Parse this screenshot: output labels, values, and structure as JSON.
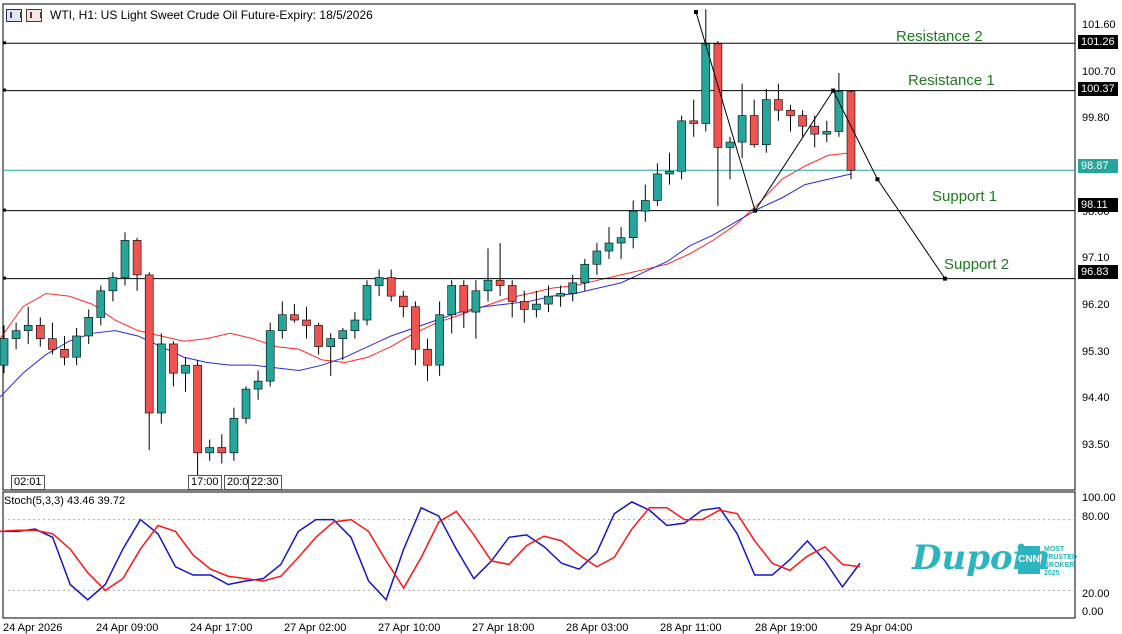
{
  "header": {
    "title": "WTI, H1:  US Light Sweet Crude Oil Future-Expiry: 18/5/2026"
  },
  "colors": {
    "bull": "#26a69a",
    "bear": "#ef5350",
    "ma_fast": "#ff2a2a",
    "ma_slow": "#2a2ad8",
    "stoch_k": "#1414c8",
    "stoch_d": "#ff1414",
    "current_price": "#26a69a",
    "level_label": "#1f7a1f",
    "brand": "#2cb4c0"
  },
  "levels": {
    "resistance_2": {
      "label": "Resistance 2",
      "price": "101.26"
    },
    "resistance_1": {
      "label": "Resistance 1",
      "price": "100.37"
    },
    "current": {
      "price": "98.87"
    },
    "support_1": {
      "label": "Support 1",
      "price": "98.11"
    },
    "support_2": {
      "label": "Support 2",
      "price": "96.83"
    }
  },
  "price_axis": {
    "ticks": [
      "101.60",
      "100.70",
      "99.80",
      "98.00",
      "97.10",
      "96.20",
      "95.30",
      "94.40",
      "93.50"
    ]
  },
  "stoch": {
    "label": "Stoch(5,3,3) 43.46 39.72",
    "ticks": [
      "100.00",
      "80.00",
      "20.00",
      "0.00"
    ]
  },
  "time_axis": {
    "labels": [
      "24 Apr 2026",
      "24 Apr 09:00",
      "24 Apr 17:00",
      "27 Apr 02:00",
      "27 Apr 10:00",
      "27 Apr 18:00",
      "28 Apr 03:00",
      "28 Apr 11:00",
      "28 Apr 19:00",
      "29 Apr 04:00"
    ],
    "tags": [
      "02:01",
      "17:00",
      "20:0",
      "22:30"
    ]
  },
  "brand": {
    "logo": "Dupoin",
    "badge": "CNN",
    "tagline": [
      "MOST",
      "TRUSTED",
      "BROKER",
      "2025"
    ]
  },
  "chart_data": {
    "type": "candlestick",
    "symbol": "WTI",
    "timeframe": "H1",
    "ylim": [
      92.85,
      102.0
    ],
    "candles": [
      [
        95.2,
        95.95,
        95.05,
        95.7
      ],
      [
        95.7,
        96.0,
        95.5,
        95.85
      ],
      [
        95.85,
        96.3,
        95.6,
        95.95
      ],
      [
        95.95,
        96.1,
        95.55,
        95.7
      ],
      [
        95.7,
        96.0,
        95.4,
        95.5
      ],
      [
        95.5,
        95.75,
        95.2,
        95.35
      ],
      [
        95.35,
        95.9,
        95.2,
        95.75
      ],
      [
        95.75,
        96.25,
        95.6,
        96.1
      ],
      [
        96.1,
        96.7,
        95.95,
        96.6
      ],
      [
        96.6,
        96.95,
        96.4,
        96.85
      ],
      [
        96.85,
        97.7,
        96.7,
        97.55
      ],
      [
        97.55,
        97.6,
        96.6,
        96.9
      ],
      [
        96.9,
        96.95,
        93.6,
        94.3
      ],
      [
        94.3,
        95.8,
        94.1,
        95.6
      ],
      [
        95.6,
        95.65,
        94.8,
        95.05
      ],
      [
        95.05,
        95.35,
        94.7,
        95.2
      ],
      [
        95.2,
        95.3,
        93.05,
        93.55
      ],
      [
        93.55,
        93.8,
        93.4,
        93.65
      ],
      [
        93.65,
        93.9,
        93.35,
        93.55
      ],
      [
        93.55,
        94.4,
        93.4,
        94.2
      ],
      [
        94.2,
        94.8,
        94.1,
        94.75
      ],
      [
        94.75,
        95.1,
        94.55,
        94.9
      ],
      [
        94.9,
        96.0,
        94.8,
        95.85
      ],
      [
        95.85,
        96.4,
        95.7,
        96.15
      ],
      [
        96.15,
        96.35,
        96.0,
        96.05
      ],
      [
        96.05,
        96.3,
        95.7,
        95.95
      ],
      [
        95.95,
        96.0,
        95.4,
        95.55
      ],
      [
        95.55,
        95.8,
        95.0,
        95.7
      ],
      [
        95.7,
        95.9,
        95.3,
        95.85
      ],
      [
        95.85,
        96.2,
        95.7,
        96.05
      ],
      [
        96.05,
        96.8,
        95.95,
        96.7
      ],
      [
        96.7,
        97.0,
        96.5,
        96.85
      ],
      [
        96.85,
        97.0,
        96.4,
        96.5
      ],
      [
        96.5,
        96.6,
        96.1,
        96.3
      ],
      [
        96.3,
        96.4,
        95.2,
        95.5
      ],
      [
        95.5,
        95.7,
        94.9,
        95.2
      ],
      [
        95.2,
        96.4,
        95.0,
        96.15
      ],
      [
        96.15,
        96.8,
        95.8,
        96.7
      ],
      [
        96.7,
        96.8,
        95.9,
        96.2
      ],
      [
        96.2,
        96.8,
        95.7,
        96.6
      ],
      [
        96.6,
        97.4,
        96.4,
        96.8
      ],
      [
        96.8,
        97.5,
        96.5,
        96.7
      ],
      [
        96.7,
        96.8,
        96.1,
        96.4
      ],
      [
        96.4,
        96.6,
        96.0,
        96.25
      ],
      [
        96.25,
        96.6,
        96.1,
        96.35
      ],
      [
        96.35,
        96.7,
        96.2,
        96.5
      ],
      [
        96.5,
        96.7,
        96.3,
        96.55
      ],
      [
        96.55,
        96.9,
        96.4,
        96.75
      ],
      [
        96.75,
        97.2,
        96.6,
        97.1
      ],
      [
        97.1,
        97.5,
        96.9,
        97.35
      ],
      [
        97.35,
        97.8,
        97.2,
        97.5
      ],
      [
        97.5,
        97.8,
        97.2,
        97.6
      ],
      [
        97.6,
        98.3,
        97.4,
        98.1
      ],
      [
        98.1,
        98.6,
        97.9,
        98.3
      ],
      [
        98.3,
        99.0,
        98.2,
        98.8
      ],
      [
        98.8,
        99.2,
        98.6,
        98.85
      ],
      [
        98.85,
        99.9,
        98.7,
        99.8
      ],
      [
        99.8,
        100.2,
        99.5,
        99.75
      ],
      [
        99.75,
        101.9,
        99.6,
        101.25
      ],
      [
        101.25,
        101.3,
        98.2,
        99.3
      ],
      [
        99.3,
        99.5,
        98.7,
        99.4
      ],
      [
        99.4,
        100.5,
        99.1,
        99.9
      ],
      [
        99.9,
        100.2,
        99.3,
        99.35
      ],
      [
        99.35,
        100.4,
        99.2,
        100.2
      ],
      [
        100.2,
        100.5,
        99.8,
        100.0
      ],
      [
        100.0,
        100.1,
        99.6,
        99.9
      ],
      [
        99.9,
        100.0,
        99.5,
        99.7
      ],
      [
        99.7,
        99.9,
        99.3,
        99.55
      ],
      [
        99.55,
        99.8,
        99.4,
        99.6
      ],
      [
        99.6,
        100.7,
        99.5,
        100.35
      ],
      [
        100.35,
        100.37,
        98.7,
        98.87
      ]
    ],
    "ma_fast": [
      95.7,
      96.3,
      96.55,
      96.5,
      96.35,
      96.05,
      95.85,
      95.75,
      95.65,
      95.7,
      95.8,
      95.7,
      95.55,
      95.5,
      95.3,
      95.25,
      95.35,
      95.55,
      95.8,
      96.0,
      96.15,
      96.3,
      96.45,
      96.55,
      96.65,
      96.7,
      96.8,
      96.9,
      97.0,
      97.1,
      97.3,
      97.55,
      97.85,
      98.25,
      98.7,
      98.95,
      99.15,
      99.2
    ],
    "ma_slow": [
      94.6,
      95.05,
      95.4,
      95.65,
      95.8,
      95.85,
      95.75,
      95.55,
      95.35,
      95.25,
      95.2,
      95.2,
      95.15,
      95.1,
      95.2,
      95.35,
      95.55,
      95.75,
      95.9,
      96.05,
      96.2,
      96.3,
      96.35,
      96.4,
      96.5,
      96.55,
      96.65,
      96.75,
      96.95,
      97.15,
      97.45,
      97.65,
      97.9,
      98.15,
      98.35,
      98.6,
      98.7,
      98.8
    ],
    "stoch_k": [
      70,
      70,
      72,
      65,
      25,
      12,
      25,
      55,
      80,
      68,
      40,
      33,
      33,
      25,
      28,
      30,
      42,
      70,
      80,
      80,
      65,
      28,
      12,
      55,
      90,
      83,
      55,
      30,
      45,
      65,
      67,
      57,
      43,
      38,
      52,
      85,
      95,
      88,
      75,
      77,
      88,
      90,
      68,
      33,
      33,
      46,
      62,
      45,
      23,
      43
    ],
    "stoch_d": [
      70,
      71,
      71,
      68,
      55,
      35,
      20,
      30,
      55,
      75,
      70,
      50,
      38,
      32,
      30,
      28,
      32,
      48,
      65,
      78,
      80,
      70,
      45,
      22,
      48,
      78,
      87,
      67,
      45,
      42,
      58,
      66,
      62,
      50,
      40,
      48,
      72,
      90,
      90,
      80,
      80,
      88,
      85,
      62,
      43,
      37,
      49,
      57,
      42,
      40
    ],
    "levels": [
      101.26,
      100.37,
      98.87,
      98.11,
      96.83
    ],
    "projection": [
      [
        101.85,
        2
      ],
      [
        98.11,
        4.8
      ],
      [
        100.37,
        8.5
      ],
      [
        98.7,
        10.6
      ],
      [
        96.83,
        13.8
      ]
    ]
  }
}
